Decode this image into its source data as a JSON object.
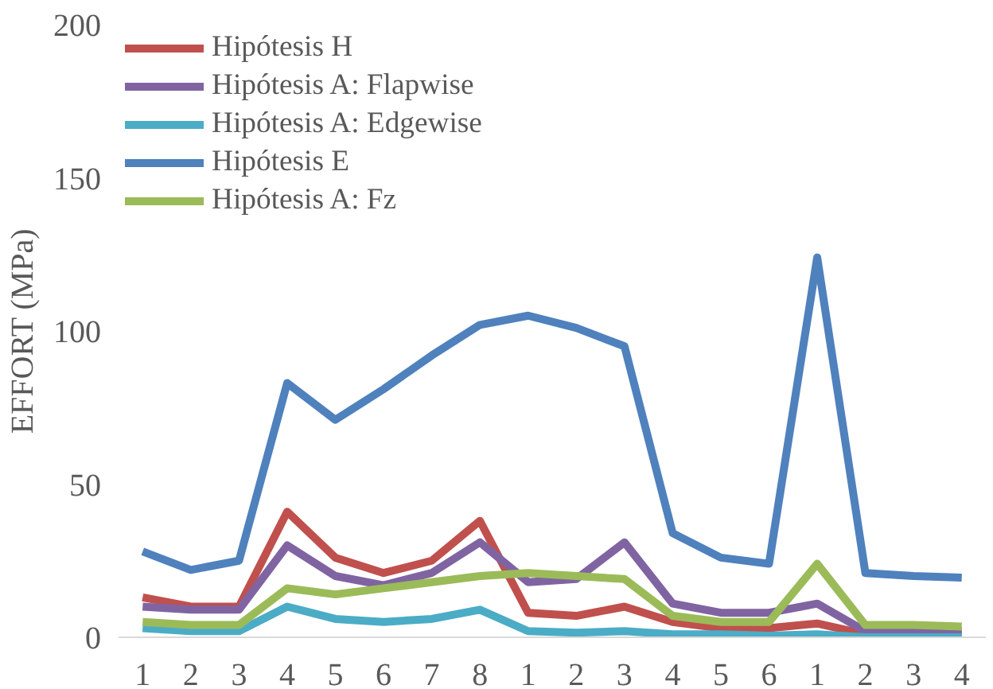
{
  "chart_data": {
    "type": "line",
    "ylabel": "EFFORT (MPa)",
    "categories": [
      "1",
      "2",
      "3",
      "4",
      "5",
      "6",
      "7",
      "8",
      "1",
      "2",
      "3",
      "4",
      "5",
      "6",
      "1",
      "2",
      "3",
      "4"
    ],
    "ylim": [
      0,
      200
    ],
    "yticks": [
      0,
      50,
      100,
      150,
      200
    ],
    "grid": false,
    "legend": "top left",
    "marker": "none",
    "line_style": "solid",
    "series": [
      {
        "name": "Hipótesis H",
        "color": "#c0504d",
        "values": [
          13,
          10,
          10,
          41,
          26,
          21,
          25,
          38,
          8,
          7,
          10,
          5,
          3,
          3,
          4.5,
          1,
          1,
          1
        ]
      },
      {
        "name": "Hipótesis A: Flapwise",
        "color": "#8064a2",
        "values": [
          10,
          9,
          9,
          30,
          20,
          17,
          21,
          31,
          18,
          19,
          31,
          11,
          8,
          8,
          11,
          2,
          2,
          2
        ]
      },
      {
        "name": "Hipótesis A: Edgewise",
        "color": "#4bacc6",
        "values": [
          3,
          2,
          2,
          10,
          6,
          5,
          6,
          9,
          2,
          1.5,
          2,
          1,
          1,
          0.5,
          1,
          0,
          0,
          0
        ]
      },
      {
        "name": "Hipótesis E",
        "color": "#4f81bd",
        "values": [
          28,
          22,
          25,
          83,
          71,
          81,
          92,
          102,
          105,
          101,
          95,
          34,
          26,
          24,
          124,
          21,
          20,
          19.5
        ]
      },
      {
        "name": "Hipótesis A: Fz",
        "color": "#9bbb59",
        "values": [
          5,
          4,
          4,
          16,
          14,
          16,
          18,
          20,
          21,
          20,
          19,
          7,
          5,
          5,
          24,
          4,
          4,
          3.5
        ]
      }
    ]
  }
}
